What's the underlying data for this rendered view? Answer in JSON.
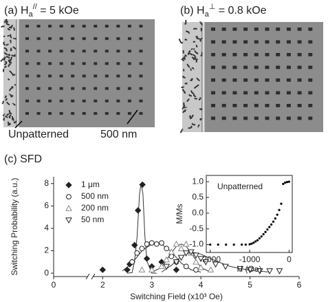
{
  "panel_a": {
    "label": "(a) H",
    "sub": "a",
    "sup": "//",
    "rest": " = 5 kOe"
  },
  "panel_b": {
    "label": "(b) H",
    "sub": "a",
    "sup": "⊥",
    "rest": " = 0.8 kOe"
  },
  "annotations": {
    "unpatterned": "Unpatterned",
    "size": "500 nm"
  },
  "chart_data": [
    {
      "type": "scatter",
      "title": "(c) SFD",
      "x_label": "Switching Field (x10³ Oe)",
      "y_label": "Switching Probability (a.u.)",
      "xlim": [
        0,
        6
      ],
      "xbreak": [
        0.7,
        1.8
      ],
      "xticks": [
        0,
        2,
        3,
        4,
        5,
        6
      ],
      "ylim": [
        -0.3,
        8.6
      ],
      "yticks": [
        0,
        2,
        4,
        6,
        8
      ],
      "legend": "upper-left",
      "series": [
        {
          "name": "1 μm",
          "marker": "diamond",
          "filled": true,
          "color": "#222222",
          "x": [
            2.0,
            2.5,
            2.55,
            2.6,
            2.65,
            2.72,
            2.81,
            2.9,
            3.0,
            3.2,
            3.5
          ],
          "values": [
            0.3,
            0.3,
            0.8,
            1.0,
            2.5,
            5.6,
            7.9,
            1.3,
            0.6,
            1.0,
            0.3
          ],
          "fit_x": [
            2.5,
            2.6,
            2.65,
            2.7,
            2.75,
            2.78,
            2.82,
            2.86,
            2.9,
            3.0,
            3.1
          ],
          "fit_y": [
            0,
            0.05,
            1.1,
            3.2,
            7.0,
            8.0,
            7.1,
            3.3,
            1.1,
            0.01,
            0
          ]
        },
        {
          "name": "500 nm",
          "marker": "circle",
          "filled": false,
          "color": "#222222",
          "x": [
            2.6,
            2.7,
            2.8,
            2.9,
            3.0,
            3.1,
            3.2,
            3.3,
            3.4,
            3.5,
            3.7,
            3.9
          ],
          "values": [
            1.0,
            1.8,
            2.2,
            2.6,
            2.7,
            2.6,
            2.7,
            2.2,
            1.5,
            1.0,
            0.6,
            0.3
          ],
          "fit_x": [
            2.4,
            2.6,
            2.8,
            3.0,
            3.1,
            3.2,
            3.4,
            3.6,
            3.8,
            4.0
          ],
          "fit_y": [
            0.2,
            0.9,
            2.0,
            2.6,
            2.7,
            2.6,
            1.9,
            0.9,
            0.3,
            0.1
          ]
        },
        {
          "name": "200 nm",
          "marker": "triangle-up",
          "filled": false,
          "color": "#888888",
          "x": [
            2.8,
            3.0,
            3.2,
            3.3,
            3.4,
            3.5,
            3.6,
            3.7,
            3.8,
            3.9,
            4.0,
            4.2
          ],
          "values": [
            0.3,
            0.3,
            0.6,
            1.2,
            1.9,
            2.6,
            2.2,
            2.6,
            1.8,
            1.0,
            0.5,
            0.3
          ],
          "fit_x": [
            3.0,
            3.2,
            3.35,
            3.5,
            3.6,
            3.7,
            3.85,
            4.0,
            4.2
          ],
          "fit_y": [
            0.1,
            0.5,
            1.5,
            2.4,
            2.6,
            2.4,
            1.5,
            0.5,
            0.1
          ]
        },
        {
          "name": "50  nm",
          "marker": "triangle-down",
          "filled": false,
          "color": "#222222",
          "x": [
            3.3,
            3.5,
            3.6,
            3.7,
            3.8,
            3.9,
            4.0,
            4.1,
            4.3,
            4.5,
            4.8,
            5.0,
            5.2,
            5.4,
            5.6
          ],
          "values": [
            0.6,
            1.0,
            1.4,
            1.8,
            1.9,
            1.6,
            1.3,
            1.0,
            0.8,
            0.6,
            0.4,
            0.3,
            0.2,
            0.2,
            0.2
          ],
          "fit_x": [
            3.2,
            3.4,
            3.6,
            3.8,
            4.0,
            4.3,
            4.6,
            5.0,
            5.4
          ],
          "fit_y": [
            0.1,
            0.7,
            1.5,
            1.9,
            1.7,
            1.1,
            0.6,
            0.25,
            0.1
          ]
        }
      ]
    },
    {
      "type": "scatter",
      "annotation": "Unpatterned",
      "x_label": "H (Oe)",
      "y_label": "M/Ms",
      "xlim": [
        -2100,
        80
      ],
      "xticks": [
        -2000,
        -1000,
        0
      ],
      "ylim": [
        -1.25,
        1.2
      ],
      "yticks": [
        {
          "value": -1,
          "label": "-1.0"
        },
        -0.5,
        {
          "value": 0,
          "label": "0.0"
        },
        0.5,
        {
          "value": 1,
          "label": "1.0"
        }
      ],
      "series": [
        {
          "color": "#000000",
          "x": [
            -2000,
            -1800,
            -1600,
            -1400,
            -1200,
            -1100,
            -1000,
            -950,
            -900,
            -850,
            -800,
            -750,
            -700,
            -650,
            -600,
            -550,
            -500,
            -450,
            -400,
            -350,
            -300,
            -250,
            -200,
            -150,
            -100,
            -50,
            0
          ],
          "values": [
            -1,
            -1,
            -1,
            -1,
            -1,
            -1,
            -0.99,
            -0.97,
            -0.94,
            -0.9,
            -0.86,
            -0.8,
            -0.74,
            -0.67,
            -0.6,
            -0.52,
            -0.44,
            -0.36,
            -0.27,
            -0.17,
            -0.05,
            0.1,
            0.3,
            0.93,
            0.97,
            0.99,
            1.0
          ]
        }
      ]
    }
  ]
}
